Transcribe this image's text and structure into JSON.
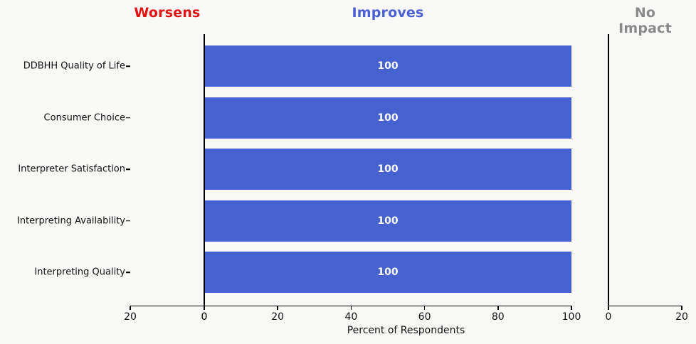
{
  "colors": {
    "background": "#f8f8f7",
    "worsens_title": "#e01212",
    "improves_title": "#4a5fd4",
    "no_impact_title": "#8a8a8a",
    "bar_fill": "#4662d0",
    "bar_label_text": "#ffffff",
    "axis": "#000000"
  },
  "chart_data": {
    "type": "bar",
    "orientation": "horizontal",
    "grid": false,
    "legend": "none",
    "xlabel": "Percent of Respondents",
    "categories": [
      "DDBHH Quality of Life",
      "Consumer Choice",
      "Interpreter Satisfaction",
      "Interpreting Availability",
      "Interpreting Quality"
    ],
    "facets": [
      {
        "key": "worsens",
        "title": "Worsens",
        "title_color": "#e01212",
        "xlim": [
          20,
          0
        ],
        "xticks": [
          20,
          0
        ],
        "values": [
          0,
          0,
          0,
          0,
          0
        ],
        "bar_labels": [
          "",
          "",
          "",
          "",
          ""
        ]
      },
      {
        "key": "improves",
        "title": "Improves",
        "title_color": "#4a5fd4",
        "xlim": [
          0,
          100
        ],
        "xticks": [
          0,
          20,
          40,
          60,
          80,
          100
        ],
        "values": [
          100,
          100,
          100,
          100,
          100
        ],
        "bar_labels": [
          "100",
          "100",
          "100",
          "100",
          "100"
        ],
        "bar_color": "#4662d0"
      },
      {
        "key": "no_impact",
        "title": "No Impact",
        "title_color": "#8a8a8a",
        "xlim": [
          0,
          20
        ],
        "xticks": [
          0,
          20
        ],
        "values": [
          0,
          0,
          0,
          0,
          0
        ],
        "bar_labels": [
          "",
          "",
          "",
          "",
          ""
        ]
      }
    ]
  }
}
